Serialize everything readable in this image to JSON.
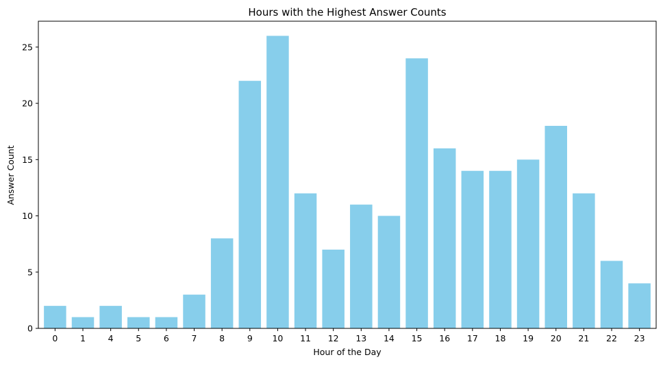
{
  "chart_data": {
    "type": "bar",
    "title": "Hours with the Highest Answer Counts",
    "xlabel": "Hour of the Day",
    "ylabel": "Answer Count",
    "categories": [
      "0",
      "1",
      "4",
      "5",
      "6",
      "7",
      "8",
      "9",
      "10",
      "11",
      "12",
      "13",
      "14",
      "15",
      "16",
      "17",
      "18",
      "19",
      "20",
      "21",
      "22",
      "23"
    ],
    "values": [
      2,
      1,
      2,
      1,
      1,
      3,
      8,
      22,
      26,
      12,
      7,
      11,
      10,
      24,
      16,
      14,
      14,
      15,
      18,
      12,
      6,
      4
    ],
    "ylim": [
      0,
      27.3
    ],
    "yticks": [
      0,
      5,
      10,
      15,
      20,
      25
    ],
    "bar_color": "#87ceeb",
    "grid": false,
    "legend": "none"
  }
}
